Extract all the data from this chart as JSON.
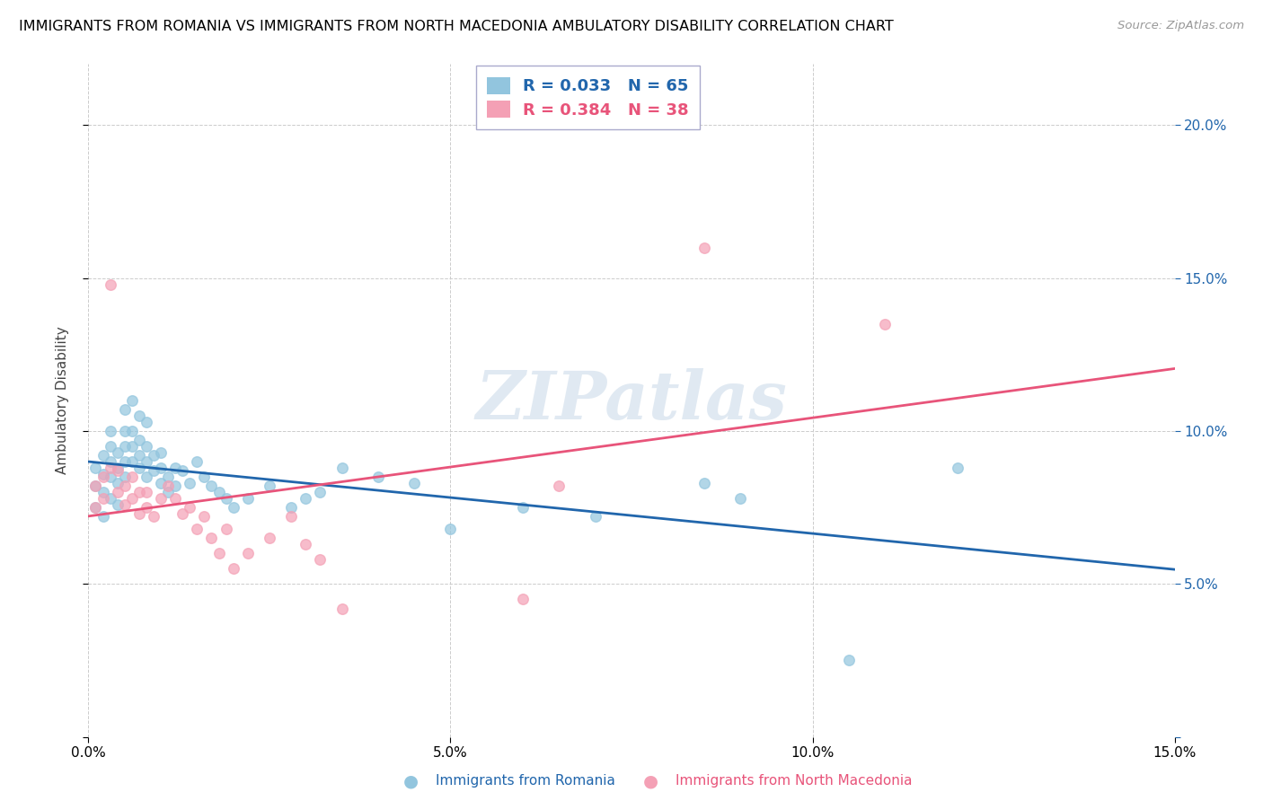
{
  "title": "IMMIGRANTS FROM ROMANIA VS IMMIGRANTS FROM NORTH MACEDONIA AMBULATORY DISABILITY CORRELATION CHART",
  "source": "Source: ZipAtlas.com",
  "ylabel": "Ambulatory Disability",
  "xlabel_romania": "Immigrants from Romania",
  "xlabel_macedonia": "Immigrants from North Macedonia",
  "r_romania": 0.033,
  "n_romania": 65,
  "r_macedonia": 0.384,
  "n_macedonia": 38,
  "xlim": [
    0.0,
    0.15
  ],
  "ylim": [
    0.0,
    0.22
  ],
  "color_romania": "#92c5de",
  "color_macedonia": "#f4a0b5",
  "trendline_color_romania": "#2166ac",
  "trendline_color_macedonia": "#e8547a",
  "watermark": "ZIPatlas",
  "romania_x": [
    0.001,
    0.001,
    0.001,
    0.002,
    0.002,
    0.002,
    0.002,
    0.003,
    0.003,
    0.003,
    0.003,
    0.003,
    0.004,
    0.004,
    0.004,
    0.004,
    0.005,
    0.005,
    0.005,
    0.005,
    0.005,
    0.006,
    0.006,
    0.006,
    0.006,
    0.007,
    0.007,
    0.007,
    0.007,
    0.008,
    0.008,
    0.008,
    0.008,
    0.009,
    0.009,
    0.01,
    0.01,
    0.01,
    0.011,
    0.011,
    0.012,
    0.012,
    0.013,
    0.014,
    0.015,
    0.016,
    0.017,
    0.018,
    0.019,
    0.02,
    0.022,
    0.025,
    0.028,
    0.03,
    0.032,
    0.035,
    0.04,
    0.045,
    0.05,
    0.06,
    0.07,
    0.085,
    0.09,
    0.105,
    0.12
  ],
  "romania_y": [
    0.075,
    0.082,
    0.088,
    0.08,
    0.086,
    0.092,
    0.072,
    0.078,
    0.085,
    0.09,
    0.095,
    0.1,
    0.083,
    0.088,
    0.093,
    0.076,
    0.085,
    0.09,
    0.095,
    0.1,
    0.107,
    0.09,
    0.095,
    0.1,
    0.11,
    0.088,
    0.092,
    0.097,
    0.105,
    0.085,
    0.09,
    0.095,
    0.103,
    0.087,
    0.092,
    0.083,
    0.088,
    0.093,
    0.08,
    0.085,
    0.082,
    0.088,
    0.087,
    0.083,
    0.09,
    0.085,
    0.082,
    0.08,
    0.078,
    0.075,
    0.078,
    0.082,
    0.075,
    0.078,
    0.08,
    0.088,
    0.085,
    0.083,
    0.068,
    0.075,
    0.072,
    0.083,
    0.078,
    0.025,
    0.088
  ],
  "macedonia_x": [
    0.001,
    0.001,
    0.002,
    0.002,
    0.003,
    0.003,
    0.004,
    0.004,
    0.005,
    0.005,
    0.006,
    0.006,
    0.007,
    0.007,
    0.008,
    0.008,
    0.009,
    0.01,
    0.011,
    0.012,
    0.013,
    0.014,
    0.015,
    0.016,
    0.017,
    0.018,
    0.019,
    0.02,
    0.022,
    0.025,
    0.028,
    0.03,
    0.032,
    0.035,
    0.06,
    0.065,
    0.085,
    0.11
  ],
  "macedonia_y": [
    0.075,
    0.082,
    0.078,
    0.085,
    0.088,
    0.148,
    0.08,
    0.087,
    0.082,
    0.076,
    0.078,
    0.085,
    0.08,
    0.073,
    0.075,
    0.08,
    0.072,
    0.078,
    0.082,
    0.078,
    0.073,
    0.075,
    0.068,
    0.072,
    0.065,
    0.06,
    0.068,
    0.055,
    0.06,
    0.065,
    0.072,
    0.063,
    0.058,
    0.042,
    0.045,
    0.082,
    0.16,
    0.135
  ],
  "xticks": [
    0.0,
    0.05,
    0.1,
    0.15
  ],
  "xticklabels": [
    "0.0%",
    "5.0%",
    "10.0%",
    "15.0%"
  ],
  "yticks": [
    0.0,
    0.05,
    0.1,
    0.15,
    0.2
  ],
  "yticklabels_right": [
    "",
    "5.0%",
    "10.0%",
    "15.0%",
    "20.0%"
  ],
  "grid_color": "#cccccc",
  "background_color": "#ffffff"
}
